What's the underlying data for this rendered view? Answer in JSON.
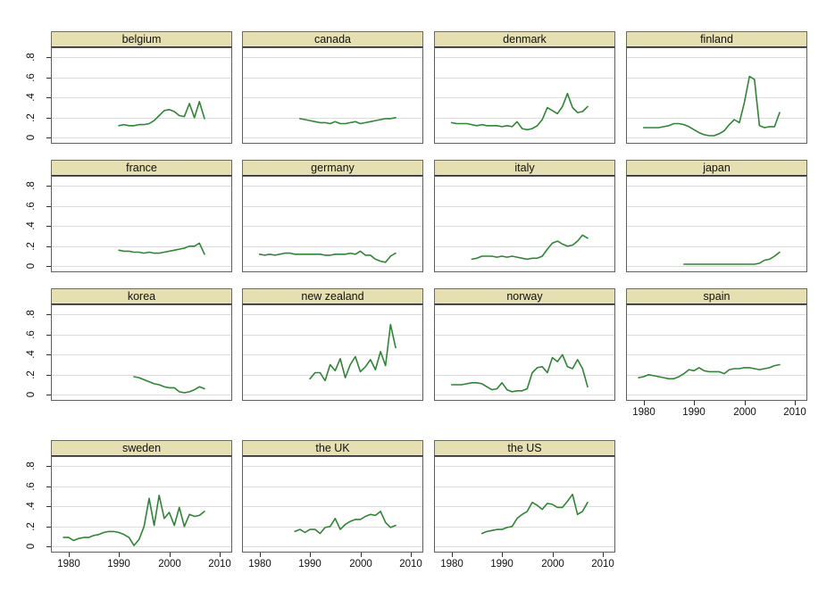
{
  "figure": {
    "background": "#ffffff",
    "panel_title_bg": "#e5dfb2",
    "panel_border": "#5f5f5f",
    "grid_color": "#dcdcdc",
    "line_color": "#2d8633",
    "tick_color": "#303030",
    "text_color": "#111111"
  },
  "axes": {
    "y_tick_labels": [
      "0",
      ".2",
      ".4",
      ".6",
      ".8"
    ],
    "y_tick_values": [
      0,
      0.2,
      0.4,
      0.6,
      0.8
    ],
    "x_tick_labels": [
      "1980",
      "1990",
      "2000",
      "2010"
    ],
    "x_tick_values": [
      1980,
      1990,
      2000,
      2010
    ],
    "x_range": [
      1976.5,
      2012.5
    ],
    "y_range": [
      -0.06,
      0.9
    ],
    "grid": true,
    "legend": "none",
    "xlabel": "",
    "ylabel": ""
  },
  "chart_data": [
    {
      "type": "line",
      "title": "belgium",
      "x_step": 1,
      "x_start": 1990,
      "values": [
        0.12,
        0.13,
        0.12,
        0.12,
        0.13,
        0.13,
        0.14,
        0.17,
        0.22,
        0.27,
        0.28,
        0.26,
        0.22,
        0.21,
        0.34,
        0.2,
        0.36,
        0.19
      ]
    },
    {
      "type": "line",
      "title": "canada",
      "x_step": 1,
      "x_start": 1988,
      "values": [
        0.19,
        0.18,
        0.17,
        0.16,
        0.15,
        0.15,
        0.14,
        0.16,
        0.14,
        0.14,
        0.15,
        0.16,
        0.14,
        0.15,
        0.16,
        0.17,
        0.18,
        0.19,
        0.19,
        0.2
      ]
    },
    {
      "type": "line",
      "title": "denmark",
      "x_step": 1,
      "x_start": 1980,
      "values": [
        0.15,
        0.14,
        0.14,
        0.14,
        0.13,
        0.12,
        0.13,
        0.12,
        0.12,
        0.12,
        0.11,
        0.12,
        0.11,
        0.16,
        0.09,
        0.08,
        0.09,
        0.12,
        0.18,
        0.3,
        0.27,
        0.24,
        0.31,
        0.44,
        0.3,
        0.25,
        0.26,
        0.31
      ]
    },
    {
      "type": "line",
      "title": "finland",
      "x_step": 1,
      "x_start": 1980,
      "values": [
        0.1,
        0.1,
        0.1,
        0.1,
        0.11,
        0.12,
        0.14,
        0.14,
        0.13,
        0.11,
        0.08,
        0.05,
        0.03,
        0.02,
        0.02,
        0.04,
        0.07,
        0.13,
        0.18,
        0.15,
        0.35,
        0.61,
        0.58,
        0.12,
        0.1,
        0.11,
        0.11,
        0.25
      ]
    },
    {
      "type": "line",
      "title": "france",
      "x_step": 1,
      "x_start": 1990,
      "values": [
        0.16,
        0.15,
        0.15,
        0.14,
        0.14,
        0.13,
        0.14,
        0.13,
        0.13,
        0.14,
        0.15,
        0.16,
        0.17,
        0.18,
        0.2,
        0.2,
        0.23,
        0.12
      ]
    },
    {
      "type": "line",
      "title": "germany",
      "x_step": 1,
      "x_start": 1980,
      "values": [
        0.12,
        0.11,
        0.12,
        0.11,
        0.12,
        0.13,
        0.13,
        0.12,
        0.12,
        0.12,
        0.12,
        0.12,
        0.12,
        0.11,
        0.11,
        0.12,
        0.12,
        0.12,
        0.13,
        0.12,
        0.15,
        0.11,
        0.11,
        0.07,
        0.05,
        0.04,
        0.1,
        0.13
      ]
    },
    {
      "type": "line",
      "title": "italy",
      "x_step": 1,
      "x_start": 1984,
      "values": [
        0.07,
        0.08,
        0.1,
        0.1,
        0.1,
        0.09,
        0.1,
        0.09,
        0.1,
        0.09,
        0.08,
        0.07,
        0.08,
        0.08,
        0.1,
        0.17,
        0.23,
        0.25,
        0.22,
        0.2,
        0.21,
        0.25,
        0.31,
        0.28
      ]
    },
    {
      "type": "line",
      "title": "japan",
      "x_step": 1,
      "x_start": 1988,
      "values": [
        0.02,
        0.02,
        0.02,
        0.02,
        0.02,
        0.02,
        0.02,
        0.02,
        0.02,
        0.02,
        0.02,
        0.02,
        0.02,
        0.02,
        0.02,
        0.03,
        0.06,
        0.07,
        0.1,
        0.14
      ]
    },
    {
      "type": "line",
      "title": "korea",
      "x_step": 1,
      "x_start": 1993,
      "values": [
        0.18,
        0.17,
        0.15,
        0.13,
        0.11,
        0.1,
        0.08,
        0.07,
        0.07,
        0.03,
        0.02,
        0.03,
        0.05,
        0.08,
        0.06
      ]
    },
    {
      "type": "line",
      "title": "new zealand",
      "x_step": 1,
      "x_start": 1990,
      "values": [
        0.16,
        0.22,
        0.22,
        0.14,
        0.3,
        0.24,
        0.36,
        0.17,
        0.3,
        0.38,
        0.23,
        0.28,
        0.35,
        0.25,
        0.43,
        0.29,
        0.7,
        0.47
      ]
    },
    {
      "type": "line",
      "title": "norway",
      "x_step": 1,
      "x_start": 1980,
      "values": [
        0.1,
        0.1,
        0.1,
        0.11,
        0.12,
        0.12,
        0.11,
        0.08,
        0.05,
        0.06,
        0.12,
        0.05,
        0.03,
        0.04,
        0.04,
        0.06,
        0.22,
        0.27,
        0.28,
        0.22,
        0.37,
        0.33,
        0.4,
        0.28,
        0.26,
        0.35,
        0.26,
        0.08
      ]
    },
    {
      "type": "line",
      "title": "spain",
      "x_step": 1,
      "x_start": 1979,
      "values": [
        0.17,
        0.18,
        0.2,
        0.19,
        0.18,
        0.17,
        0.16,
        0.16,
        0.18,
        0.21,
        0.25,
        0.24,
        0.27,
        0.24,
        0.23,
        0.23,
        0.23,
        0.21,
        0.25,
        0.26,
        0.26,
        0.27,
        0.27,
        0.26,
        0.25,
        0.26,
        0.27,
        0.29,
        0.3
      ]
    },
    {
      "type": "line",
      "title": "sweden",
      "x_step": 1,
      "x_start": 1979,
      "values": [
        0.09,
        0.09,
        0.06,
        0.08,
        0.09,
        0.09,
        0.11,
        0.12,
        0.14,
        0.15,
        0.15,
        0.14,
        0.12,
        0.09,
        0.01,
        0.07,
        0.2,
        0.48,
        0.21,
        0.51,
        0.28,
        0.34,
        0.21,
        0.39,
        0.2,
        0.32,
        0.3,
        0.31,
        0.35
      ]
    },
    {
      "type": "line",
      "title": "the UK",
      "x_step": 1,
      "x_start": 1987,
      "values": [
        0.15,
        0.17,
        0.14,
        0.17,
        0.17,
        0.13,
        0.19,
        0.2,
        0.28,
        0.17,
        0.22,
        0.25,
        0.27,
        0.27,
        0.3,
        0.32,
        0.31,
        0.35,
        0.24,
        0.19,
        0.21
      ]
    },
    {
      "type": "line",
      "title": "the US",
      "x_step": 1,
      "x_start": 1986,
      "values": [
        0.13,
        0.15,
        0.16,
        0.17,
        0.17,
        0.19,
        0.2,
        0.28,
        0.32,
        0.35,
        0.44,
        0.41,
        0.37,
        0.43,
        0.42,
        0.39,
        0.39,
        0.45,
        0.52,
        0.32,
        0.35,
        0.44
      ]
    }
  ]
}
